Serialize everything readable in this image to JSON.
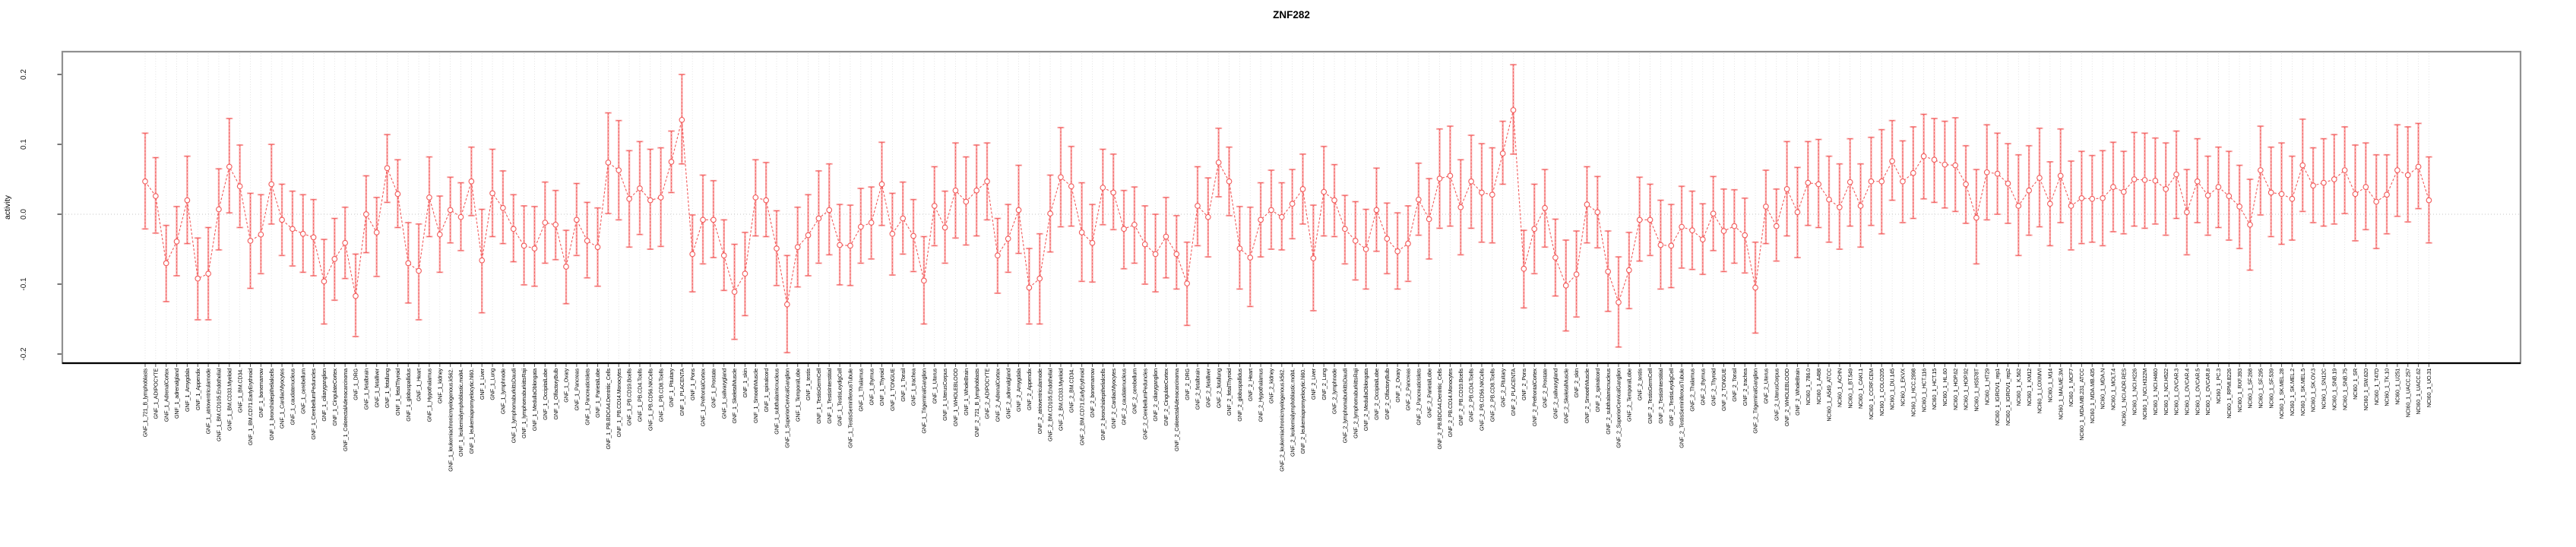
{
  "title": "ZNF282",
  "chart_data": {
    "type": "scatter",
    "subtype": "points-with-error-bars-and-dashed-connecting-line",
    "title": "ZNF282",
    "xlabel": "",
    "ylabel": "activity",
    "ylim": [
      -0.223,
      0.233
    ],
    "yticks": [
      -0.2,
      -0.1,
      0.0,
      0.1,
      0.2
    ],
    "grid": "vertical dotted gridline per category; dotted horizontal line at y=0",
    "legend": "none",
    "colors": {
      "error_bar": "#F9A9A9",
      "point_and_line": "#F25A5A",
      "gridline": "#DCDCDC",
      "zero_line": "#C4C4C4",
      "box_border": "#909090",
      "axis_line": "#000000"
    },
    "categories": [
      "GNF_1_721_B_lymphoblasts",
      "GNF_1_ADIPOCYTE",
      "GNF_1_AdrenalCortex",
      "GNF_1_adrenalgland",
      "GNF_1_Amygdala",
      "GNF_1_Appendix",
      "GNF_1_atrioventricularnode",
      "GNF_1_BM.CD105.Endothelial",
      "GNF_1_BM.CD33.Myeloid",
      "GNF_1_BM.CD34.",
      "GNF_1_BM.CD71.EarlyErythroid",
      "GNF_1_bonemarrow",
      "GNF_1_bronchialepithelialcells",
      "GNF_1_CardiacMyocytes",
      "GNF_1_caudatenucleus",
      "GNF_1_cerebellum",
      "GNF_1_CerebellumPeduncles",
      "GNF_1_ciliaryganglion",
      "GNF_1_CingulateCortex",
      "GNF_1_ColorectalAdenocarcinoma",
      "GNF_1_DRG",
      "GNF_1_fetalbrain",
      "GNF_1_fetalliver",
      "GNF_1_fetallung",
      "GNF_1_fetalThyroid",
      "GNF_1_globuspallidus",
      "GNF_1_Heart",
      "GNF_1_Hypothalamus",
      "GNF_1_kidney",
      "GNF_1_leukemiachronicmyelogenous.k562.",
      "GNF_1_leukemialymphoblastic.molt4.",
      "GNF_1_leukemiapromyelocytic.hl60.",
      "GNF_1_Liver",
      "GNF_1_Lung",
      "GNF_1_lymphnode",
      "GNF_1_lymphomaburkittsDaudi",
      "GNF_1_lymphomaburkittsRaji",
      "GNF_1_MedullaOblongata",
      "GNF_1_OccipitalLobe",
      "GNF_1_OlfactoryBulb",
      "GNF_1_Ovary",
      "GNF_1_Pancreas",
      "GNF_1_PancreaticIslets",
      "GNF_1_ParietalLobe",
      "GNF_1_PB.BDCA4.Dentritic_Cells",
      "GNF_1_PB.CD14.Monocytes",
      "GNF_1_PB.CD19.Bcells",
      "GNF_1_PB.CD4.Tcells",
      "GNF_1_PB.CD56.NKCells",
      "GNF_1_PB.CD8.Tcells",
      "GNF_1_Pituitary",
      "GNF_1_PLACENTA",
      "GNF_1_Pons",
      "GNF_1_PrefrontalCortex",
      "GNF_1_Prostate",
      "GNF_1_salivarygland",
      "GNF_1_SkeletalMuscle",
      "GNF_1_skin",
      "GNF_1_SmoothMuscle",
      "GNF_1_spinalcord",
      "GNF_1_subthalamicnucleus",
      "GNF_1_SuperiorCervicalGanglion",
      "GNF_1_TemporalLobe",
      "GNF_1_testis",
      "GNF_1_TestisGermCell",
      "GNF_1_TestisInterstitial",
      "GNF_1_TestisLeydigCell",
      "GNF_1_TestisSeminiferousTubule",
      "GNF_1_Thalamus",
      "GNF_1_thymus",
      "GNF_1_Thyroid",
      "GNF_1_TONGUE",
      "GNF_1_Tonsil",
      "GNF_1_trachea",
      "GNF_1_TrigeminalGanglion",
      "GNF_1_Uterus",
      "GNF_1_UterusCorpus",
      "GNF_1_WHOLEBLOOD",
      "GNF_1_WholeBrain",
      "GNF_2_721_B_lymphoblasts",
      "GNF_2_ADIPOCYTE",
      "GNF_2_AdrenalCortex",
      "GNF_2_adrenalgland",
      "GNF_2_Amygdala",
      "GNF_2_Appendix",
      "GNF_2_atrioventricularnode",
      "GNF_2_BM.CD105.Endothelial",
      "GNF_2_BM.CD33.Myeloid",
      "GNF_2_BM.CD34.",
      "GNF_2_BM.CD71.EarlyErythroid",
      "GNF_2_bonemarrow",
      "GNF_2_bronchialepithelialcells",
      "GNF_2_CardiacMyocytes",
      "GNF_2_caudatenucleus",
      "GNF_2_cerebellum",
      "GNF_2_CerebellumPeduncles",
      "GNF_2_ciliaryganglion",
      "GNF_2_CingulateCortex",
      "GNF_2_ColorectalAdenocarcinoma",
      "GNF_2_DRG",
      "GNF_2_fetalbrain",
      "GNF_2_fetalliver",
      "GNF_2_fetallung",
      "GNF_2_fetalThyroid",
      "GNF_2_globuspallidus",
      "GNF_2_Heart",
      "GNF_2_Hypothalamus",
      "GNF_2_kidney",
      "GNF_2_leukemiachronicmyelogenous.k562.",
      "GNF_2_leukemialymphoblastic.molt4.",
      "GNF_2_leukemiapromyelocytic.hl60.",
      "GNF_2_Liver",
      "GNF_2_Lung",
      "GNF_2_lymphnode",
      "GNF_2_lymphomaburkittsDaudi",
      "GNF_2_lymphomaburkittsRaji",
      "GNF_2_MedullaOblongata",
      "GNF_2_OccipitalLobe",
      "GNF_2_OlfactoryBulb",
      "GNF_2_Ovary",
      "GNF_2_Pancreas",
      "GNF_2_PancreaticIslets",
      "GNF_2_ParietalLobe",
      "GNF_2_PB.BDCA4.Dentritic_Cells",
      "GNF_2_PB.CD14.Monocytes",
      "GNF_2_PB.CD19.Bcells",
      "GNF_2_PB.CD4.Tcells",
      "GNF_2_PB.CD56.NKCells",
      "GNF_2_PB.CD8.Tcells",
      "GNF_2_Pituitary",
      "GNF_2_PLACENTA",
      "GNF_2_Pons",
      "GNF_2_PrefrontalCortex",
      "GNF_2_Prostate",
      "GNF_2_salivarygland",
      "GNF_2_SkeletalMuscle",
      "GNF_2_skin",
      "GNF_2_SmoothMuscle",
      "GNF_2_spinalcord",
      "GNF_2_subthalamicnucleus",
      "GNF_2_SuperiorCervicalGanglion",
      "GNF_2_TemporalLobe",
      "GNF_2_testis",
      "GNF_2_TestisGermCell",
      "GNF_2_TestisInterstitial",
      "GNF_2_TestisLeydigCell",
      "GNF_2_TestisSeminiferousTubule",
      "GNF_2_Thalamus",
      "GNF_2_thymus",
      "GNF_2_Thyroid",
      "GNF_2_TONGUE",
      "GNF_2_Tonsil",
      "GNF_2_trachea",
      "GNF_2_TrigeminalGanglion",
      "GNF_2_Uterus",
      "GNF_2_UterusCorpus",
      "GNF_2_WHOLEBLOOD",
      "GNF_2_WholeBrain",
      "NCI60_1_786.0",
      "NCI60_1_A498",
      "NCI60_1_A549_ATCC",
      "NCI60_1_ACHN",
      "NCI60_1_BT.549",
      "NCI60_1_CAKI.1",
      "NCI60_1_CCRF.CEM",
      "NCI60_1_COLO205",
      "NCI60_1_DU.145",
      "NCI60_1_EKVX",
      "NCI60_1_HCC.2998",
      "NCI60_1_HCT.116",
      "NCI60_1_HCT.15",
      "NCI60_1_HL.60",
      "NCI60_1_HOP.62",
      "NCI60_1_HOP.92",
      "NCI60_1_HS578T",
      "NCI60_1_HT29",
      "NCI60_1_IGROV1_rep1",
      "NCI60_1_IGROV1_rep2",
      "NCI60_1_K.562",
      "NCI60_1_KM12",
      "NCI60_1_LOXIMVI",
      "NCI60_1_M14",
      "NCI60_1_MALME.3M",
      "NCI60_1_MCF7",
      "NCI60_1_MDA.MB.231_ATCC",
      "NCI60_1_MDA.MB.435",
      "NCI60_1_MDA.N",
      "NCI60_1_MOLT.4",
      "NCI60_1_NCI.ADR.RES",
      "NCI60_1_NCI.H226",
      "NCI60_1_NCI.H322M",
      "NCI60_1_NCI.H460",
      "NCI60_1_NCI.H522",
      "NCI60_1_OVCAR.3",
      "NCI60_1_OVCAR.4",
      "NCI60_1_OVCAR.5",
      "NCI60_1_OVCAR.8",
      "NCI60_1_PC.3",
      "NCI60_1_RPMI.8226",
      "NCI60_1_RXF.393",
      "NCI60_1_SF.268",
      "NCI60_1_SF.295",
      "NCI60_1_SF.539",
      "NCI60_1_SK.MEL.28",
      "NCI60_1_SK.MEL.2",
      "NCI60_1_SK.MEL.5",
      "NCI60_1_SK.OV.3",
      "NCI60_1_SN12C",
      "NCI60_1_SNB.19",
      "NCI60_1_SNB.75",
      "NCI60_1_SR",
      "NCI60_1_SW.620",
      "NCI60_1_T47D",
      "NCI60_1_TK.10",
      "NCI60_1_U251",
      "NCI60_1_UACC.257",
      "NCI60_1_UACC.62",
      "NCI60_1_UO.31"
    ],
    "series": [
      {
        "name": "activity",
        "values": [
          0.047,
          0.026,
          -0.07,
          -0.039,
          0.02,
          -0.092,
          -0.085,
          0.007,
          0.068,
          0.04,
          -0.038,
          -0.029,
          0.043,
          -0.008,
          -0.021,
          -0.028,
          -0.033,
          -0.096,
          -0.064,
          -0.041,
          -0.117,
          0.0,
          -0.026,
          0.066,
          0.029,
          -0.07,
          -0.081,
          0.024,
          -0.029,
          0.006,
          -0.004,
          0.047,
          -0.066,
          0.03,
          0.009,
          -0.021,
          -0.045,
          -0.049,
          -0.012,
          -0.015,
          -0.075,
          -0.008,
          -0.038,
          -0.047,
          0.074,
          0.063,
          0.022,
          0.037,
          0.02,
          0.024,
          0.075,
          0.135,
          -0.057,
          -0.008,
          -0.008,
          -0.059,
          -0.111,
          -0.085,
          0.024,
          0.02,
          -0.049,
          -0.129,
          -0.047,
          -0.03,
          -0.006,
          0.006,
          -0.044,
          -0.045,
          -0.018,
          -0.012,
          0.043,
          -0.028,
          -0.006,
          -0.031,
          -0.095,
          0.012,
          -0.019,
          0.034,
          0.018,
          0.034,
          0.047,
          -0.059,
          -0.035,
          0.006,
          -0.105,
          -0.092,
          0.001,
          0.053,
          0.04,
          -0.026,
          -0.041,
          0.038,
          0.031,
          -0.021,
          -0.015,
          -0.043,
          -0.057,
          -0.032,
          -0.057,
          -0.099,
          0.012,
          -0.004,
          0.074,
          0.047,
          -0.049,
          -0.062,
          -0.008,
          0.006,
          -0.004,
          0.015,
          0.036,
          -0.063,
          0.032,
          0.02,
          -0.021,
          -0.038,
          -0.05,
          0.006,
          -0.035,
          -0.053,
          -0.042,
          0.021,
          -0.007,
          0.051,
          0.055,
          0.01,
          0.047,
          0.031,
          0.028,
          0.087,
          0.149,
          -0.078,
          -0.021,
          0.009,
          -0.062,
          -0.102,
          -0.086,
          0.014,
          0.003,
          -0.082,
          -0.126,
          -0.08,
          -0.008,
          -0.008,
          -0.044,
          -0.045,
          -0.018,
          -0.023,
          -0.036,
          0.001,
          -0.024,
          -0.017,
          -0.03,
          -0.105,
          0.011,
          -0.017,
          0.036,
          0.003,
          0.045,
          0.043,
          0.021,
          0.01,
          0.046,
          0.012,
          0.047,
          0.047,
          0.076,
          0.047,
          0.059,
          0.083,
          0.078,
          0.071,
          0.07,
          0.043,
          -0.005,
          0.06,
          0.058,
          0.044,
          0.012,
          0.034,
          0.052,
          0.015,
          0.055,
          0.012,
          0.023,
          0.022,
          0.023,
          0.039,
          0.032,
          0.05,
          0.049,
          0.048,
          0.036,
          0.057,
          0.003,
          0.047,
          0.027,
          0.039,
          0.026,
          0.011,
          -0.015,
          0.063,
          0.031,
          0.029,
          0.022,
          0.07,
          0.041,
          0.045,
          0.05,
          0.063,
          0.029,
          0.039,
          0.018,
          0.028,
          0.063,
          0.056,
          0.068,
          0.02
        ],
        "error_low": [
          -0.021,
          -0.027,
          -0.125,
          -0.088,
          -0.042,
          -0.151,
          -0.151,
          -0.051,
          0.002,
          -0.019,
          -0.106,
          -0.085,
          -0.014,
          -0.059,
          -0.074,
          -0.083,
          -0.088,
          -0.157,
          -0.123,
          -0.092,
          -0.175,
          -0.055,
          -0.089,
          0.017,
          -0.019,
          -0.127,
          -0.151,
          -0.032,
          -0.083,
          -0.041,
          -0.052,
          -0.002,
          -0.141,
          -0.032,
          -0.042,
          -0.068,
          -0.101,
          -0.103,
          -0.07,
          -0.065,
          -0.128,
          -0.059,
          -0.091,
          -0.103,
          0.001,
          -0.008,
          -0.047,
          -0.029,
          -0.05,
          -0.046,
          0.031,
          0.072,
          -0.111,
          -0.071,
          -0.062,
          -0.109,
          -0.179,
          -0.145,
          -0.031,
          -0.032,
          -0.102,
          -0.198,
          -0.104,
          -0.088,
          -0.07,
          -0.058,
          -0.101,
          -0.102,
          -0.07,
          -0.064,
          -0.016,
          -0.087,
          -0.057,
          -0.082,
          -0.157,
          -0.045,
          -0.07,
          -0.034,
          -0.044,
          -0.031,
          -0.008,
          -0.113,
          -0.083,
          -0.056,
          -0.157,
          -0.157,
          -0.054,
          -0.018,
          -0.017,
          -0.096,
          -0.097,
          -0.015,
          -0.022,
          -0.078,
          -0.07,
          -0.1,
          -0.111,
          -0.091,
          -0.107,
          -0.159,
          -0.045,
          -0.061,
          0.025,
          -0.002,
          -0.107,
          -0.132,
          -0.061,
          -0.05,
          -0.051,
          -0.035,
          -0.014,
          -0.138,
          -0.031,
          -0.032,
          -0.071,
          -0.094,
          -0.107,
          -0.053,
          -0.085,
          -0.107,
          -0.096,
          -0.03,
          -0.064,
          -0.02,
          -0.017,
          -0.058,
          -0.02,
          -0.04,
          -0.041,
          0.043,
          0.086,
          -0.134,
          -0.085,
          -0.047,
          -0.117,
          -0.167,
          -0.147,
          -0.041,
          -0.048,
          -0.139,
          -0.19,
          -0.135,
          -0.067,
          -0.059,
          -0.107,
          -0.105,
          -0.077,
          -0.079,
          -0.086,
          -0.052,
          -0.082,
          -0.07,
          -0.084,
          -0.17,
          -0.042,
          -0.067,
          -0.031,
          -0.062,
          -0.016,
          -0.019,
          -0.04,
          -0.05,
          -0.017,
          -0.047,
          -0.016,
          -0.028,
          0.02,
          -0.012,
          -0.006,
          0.022,
          0.017,
          0.009,
          0.004,
          -0.013,
          -0.071,
          -0.008,
          0.0,
          -0.013,
          -0.059,
          -0.03,
          -0.018,
          -0.045,
          -0.012,
          -0.051,
          -0.042,
          -0.04,
          -0.045,
          -0.025,
          -0.028,
          -0.017,
          -0.02,
          -0.014,
          -0.03,
          -0.006,
          -0.058,
          -0.012,
          -0.03,
          -0.019,
          -0.037,
          -0.049,
          -0.08,
          -0.001,
          -0.032,
          -0.043,
          -0.037,
          0.004,
          -0.012,
          -0.017,
          -0.014,
          0.001,
          -0.038,
          -0.022,
          -0.049,
          -0.028,
          -0.003,
          -0.011,
          0.008,
          -0.041
        ],
        "error_high": [
          0.116,
          0.081,
          -0.016,
          0.011,
          0.083,
          -0.034,
          -0.019,
          0.065,
          0.137,
          0.099,
          0.03,
          0.028,
          0.1,
          0.043,
          0.033,
          0.028,
          0.021,
          -0.036,
          -0.006,
          0.01,
          -0.057,
          0.055,
          0.024,
          0.114,
          0.078,
          -0.012,
          -0.014,
          0.082,
          0.026,
          0.053,
          0.045,
          0.096,
          0.007,
          0.093,
          0.062,
          0.028,
          0.012,
          0.011,
          0.046,
          0.034,
          -0.023,
          0.044,
          0.017,
          0.009,
          0.145,
          0.134,
          0.091,
          0.104,
          0.093,
          0.095,
          0.119,
          0.2,
          -0.001,
          0.056,
          0.048,
          -0.008,
          -0.043,
          -0.026,
          0.078,
          0.074,
          0.005,
          -0.059,
          0.01,
          0.028,
          0.062,
          0.072,
          0.014,
          0.013,
          0.037,
          0.039,
          0.103,
          0.03,
          0.046,
          0.021,
          -0.032,
          0.068,
          0.033,
          0.102,
          0.082,
          0.099,
          0.102,
          -0.006,
          0.014,
          0.07,
          -0.049,
          -0.028,
          0.056,
          0.124,
          0.097,
          0.045,
          0.014,
          0.093,
          0.086,
          0.034,
          0.039,
          0.012,
          0.0,
          0.024,
          -0.002,
          -0.04,
          0.068,
          0.052,
          0.123,
          0.096,
          0.011,
          0.01,
          0.045,
          0.063,
          0.045,
          0.064,
          0.086,
          0.013,
          0.097,
          0.071,
          0.027,
          0.018,
          0.007,
          0.066,
          0.016,
          0.002,
          0.012,
          0.073,
          0.051,
          0.122,
          0.126,
          0.078,
          0.113,
          0.101,
          0.095,
          0.133,
          0.214,
          -0.023,
          0.043,
          0.064,
          -0.007,
          -0.037,
          -0.024,
          0.068,
          0.054,
          -0.024,
          -0.061,
          -0.026,
          0.053,
          0.043,
          0.02,
          0.014,
          0.04,
          0.033,
          0.015,
          0.054,
          0.036,
          0.035,
          0.023,
          -0.04,
          0.063,
          0.036,
          0.104,
          0.067,
          0.104,
          0.107,
          0.083,
          0.072,
          0.108,
          0.072,
          0.11,
          0.121,
          0.134,
          0.105,
          0.125,
          0.143,
          0.137,
          0.133,
          0.138,
          0.098,
          0.064,
          0.128,
          0.116,
          0.101,
          0.085,
          0.098,
          0.123,
          0.075,
          0.122,
          0.076,
          0.09,
          0.084,
          0.091,
          0.103,
          0.09,
          0.117,
          0.116,
          0.109,
          0.102,
          0.119,
          0.064,
          0.108,
          0.083,
          0.096,
          0.09,
          0.07,
          0.05,
          0.126,
          0.096,
          0.102,
          0.083,
          0.136,
          0.095,
          0.108,
          0.114,
          0.125,
          0.099,
          0.102,
          0.085,
          0.085,
          0.128,
          0.125,
          0.13,
          0.082
        ]
      }
    ]
  }
}
